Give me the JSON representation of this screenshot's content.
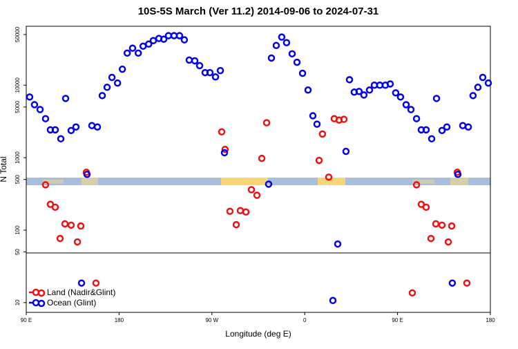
{
  "chart_data": {
    "type": "scatter",
    "title": "10S-5S March (Ver 11.2)   2014-09-06 to 2024-07-31",
    "xlabel": "Longitude (deg E)",
    "ylabel": "N Total",
    "log_y": true,
    "legend": "lower left",
    "xlim": [
      90,
      540
    ],
    "ylim": [
      7.33,
      65000
    ],
    "xticks": [
      {
        "value": 90,
        "label": "90 E"
      },
      180,
      {
        "value": 270,
        "label": "90 W"
      },
      {
        "value": 360,
        "label": "0"
      },
      {
        "value": 450,
        "label": "90 E"
      },
      {
        "value": 540,
        "label": "180"
      }
    ],
    "yticks": [
      10,
      50,
      100,
      500,
      1000,
      5000,
      10000,
      50000
    ],
    "series": [
      {
        "name": "Land (Nadir&Glint)",
        "color": "#ee1111",
        "x": [
          108.7,
          113.4,
          118.1,
          122.8,
          127.5,
          133.5,
          139.6,
          142.9,
          148.3,
          157.6,
          279.5,
          282.8,
          287.5,
          293.6,
          297.6,
          303,
          308.3,
          313.7,
          318.4,
          323.1,
          373.9,
          377.2,
          383.3,
          388.6,
          393.3,
          398,
          464.3,
          468.4,
          473,
          477.7,
          482.4,
          487.1,
          493.1,
          499.2,
          502.5,
          507.9,
          517.2
        ],
        "values": [
          422,
          227,
          207,
          76.7,
          122,
          117,
          68.7,
          114,
          628,
          18.6,
          2270,
          1300,
          182,
          119,
          186,
          178,
          361,
          303,
          977,
          3030,
          916,
          2120,
          538,
          3450,
          3300,
          3380,
          13.6,
          422,
          227,
          207,
          76.7,
          122,
          117,
          68.7,
          114,
          628,
          18.6
        ]
      },
      {
        "name": "Ocean (Glint)",
        "color": "#0000ee",
        "x": [
          93.3,
          98,
          103.4,
          108.7,
          113.4,
          118.1,
          123.5,
          128.2,
          133.5,
          138.2,
          143.6,
          148.9,
          153.6,
          159,
          163.7,
          168.4,
          173.1,
          178.5,
          183.2,
          187.9,
          193.1,
          198.6,
          203.3,
          208.7,
          213.2,
          218.6,
          223.3,
          227.9,
          233.3,
          238.6,
          243.3,
          248,
          253.4,
          258.1,
          263.4,
          268.1,
          273.5,
          278.2,
          282.2,
          325,
          327.7,
          332.4,
          337.7,
          342.4,
          347.8,
          352.5,
          357.9,
          363.2,
          367.9,
          371.9,
          387.3,
          392,
          400,
          403.4,
          408,
          412.7,
          417.4,
          422.8,
          427.5,
          432.8,
          438.2,
          442.9,
          448.2,
          452.9,
          458.3,
          463,
          468.4,
          473,
          477.7,
          483.1,
          487.8,
          493.1,
          497.8,
          503.1,
          508.5,
          513.2,
          518.6,
          523.2,
          527.9,
          532.6,
          538
        ],
        "values": [
          6870,
          5380,
          4610,
          3450,
          2420,
          2420,
          1820,
          6560,
          2370,
          2650,
          18.6,
          588,
          2770,
          2650,
          7180,
          9350,
          12800,
          10700,
          16600,
          27700,
          32400,
          27700,
          34500,
          36900,
          41200,
          44100,
          43100,
          48200,
          48200,
          48200,
          42200,
          22200,
          21700,
          18600,
          14900,
          14900,
          13000,
          15900,
          1170,
          431,
          23700,
          35300,
          46100,
          38600,
          27100,
          20700,
          14600,
          8570,
          3780,
          2900,
          10.7,
          64.3,
          1220,
          11900,
          8020,
          8190,
          7330,
          8570,
          10000,
          10000,
          10000,
          10400,
          7840,
          6870,
          5380,
          4610,
          3450,
          2420,
          2420,
          1820,
          6560,
          2370,
          2650,
          18.6,
          588,
          2770,
          2650,
          7180,
          9350,
          12800,
          10700
        ]
      }
    ]
  }
}
